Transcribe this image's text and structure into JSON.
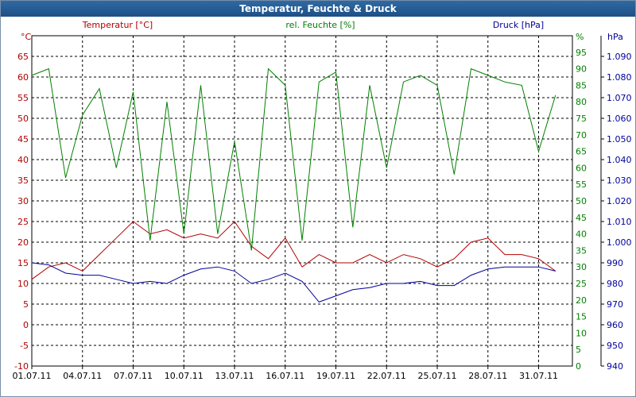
{
  "window": {
    "title": "Temperatur, Feuchte & Druck"
  },
  "colors": {
    "temperature": "#b00000",
    "humidity": "#008000",
    "pressure": "#00009a",
    "grid": "#000000"
  },
  "chart_data": {
    "type": "line",
    "title": "Temperatur, Feuchte & Druck",
    "grid": true,
    "x_ticks": [
      "01.07.11",
      "04.07.11",
      "07.07.11",
      "10.07.11",
      "13.07.11",
      "16.07.11",
      "19.07.11",
      "22.07.11",
      "25.07.11",
      "28.07.11",
      "31.07.11"
    ],
    "xlim": [
      "2011-07-01",
      "2011-08-02"
    ],
    "axes": {
      "temperature": {
        "label": "Temperatur [°C]",
        "unit": "°C",
        "ylim": [
          -10,
          70
        ],
        "ticks": [
          "-10",
          "-5",
          "0",
          "5",
          "10",
          "15",
          "20",
          "25",
          "30",
          "35",
          "40",
          "45",
          "50",
          "55",
          "60",
          "65"
        ]
      },
      "humidity": {
        "label": "rel. Feuchte [%]",
        "unit": "%",
        "ylim": [
          0,
          100
        ],
        "ticks": [
          "0",
          "5",
          "10",
          "15",
          "20",
          "25",
          "30",
          "35",
          "40",
          "45",
          "50",
          "55",
          "60",
          "65",
          "70",
          "75",
          "80",
          "85",
          "90",
          "95"
        ]
      },
      "pressure": {
        "label": "Druck [hPa]",
        "unit": "hPa",
        "ylim": [
          940,
          1100
        ],
        "ticks": [
          "940",
          "950",
          "960",
          "970",
          "980",
          "990",
          "1.000",
          "1.010",
          "1.020",
          "1.030",
          "1.040",
          "1.050",
          "1.060",
          "1.070",
          "1.080",
          "1.090"
        ]
      }
    },
    "series": [
      {
        "name": "Temperatur [°C]",
        "axis": "temperature",
        "x": [
          "2011-07-01",
          "2011-07-02",
          "2011-07-03",
          "2011-07-04",
          "2011-07-05",
          "2011-07-06",
          "2011-07-07",
          "2011-07-08",
          "2011-07-09",
          "2011-07-10",
          "2011-07-11",
          "2011-07-12",
          "2011-07-13",
          "2011-07-14",
          "2011-07-15",
          "2011-07-16",
          "2011-07-17",
          "2011-07-18",
          "2011-07-19",
          "2011-07-20",
          "2011-07-21",
          "2011-07-22",
          "2011-07-23",
          "2011-07-24",
          "2011-07-25",
          "2011-07-26",
          "2011-07-27",
          "2011-07-28",
          "2011-07-29",
          "2011-07-30",
          "2011-07-31",
          "2011-08-01"
        ],
        "y": [
          11,
          14,
          15,
          13,
          17,
          21,
          25,
          22,
          23,
          21,
          22,
          21,
          25,
          19,
          16,
          21,
          14,
          17,
          15,
          15,
          17,
          15,
          17,
          16,
          14,
          16,
          20,
          21,
          17,
          17,
          16,
          13
        ]
      },
      {
        "name": "rel. Feuchte [%]",
        "axis": "humidity",
        "x": [
          "2011-07-01",
          "2011-07-02",
          "2011-07-03",
          "2011-07-04",
          "2011-07-05",
          "2011-07-06",
          "2011-07-07",
          "2011-07-08",
          "2011-07-09",
          "2011-07-10",
          "2011-07-11",
          "2011-07-12",
          "2011-07-13",
          "2011-07-14",
          "2011-07-15",
          "2011-07-16",
          "2011-07-17",
          "2011-07-18",
          "2011-07-19",
          "2011-07-20",
          "2011-07-21",
          "2011-07-22",
          "2011-07-23",
          "2011-07-24",
          "2011-07-25",
          "2011-07-26",
          "2011-07-27",
          "2011-07-28",
          "2011-07-29",
          "2011-07-30",
          "2011-07-31",
          "2011-08-01"
        ],
        "y": [
          88,
          90,
          57,
          76,
          84,
          60,
          83,
          38,
          80,
          40,
          85,
          40,
          68,
          35,
          90,
          85,
          38,
          86,
          89,
          42,
          85,
          60,
          86,
          88,
          85,
          58,
          90,
          88,
          86,
          85,
          65,
          82
        ]
      },
      {
        "name": "Druck [hPa]",
        "axis": "pressure",
        "x": [
          "2011-07-01",
          "2011-07-02",
          "2011-07-03",
          "2011-07-04",
          "2011-07-05",
          "2011-07-06",
          "2011-07-07",
          "2011-07-08",
          "2011-07-09",
          "2011-07-10",
          "2011-07-11",
          "2011-07-12",
          "2011-07-13",
          "2011-07-14",
          "2011-07-15",
          "2011-07-16",
          "2011-07-17",
          "2011-07-18",
          "2011-07-19",
          "2011-07-20",
          "2011-07-21",
          "2011-07-22",
          "2011-07-23",
          "2011-07-24",
          "2011-07-25",
          "2011-07-26",
          "2011-07-27",
          "2011-07-28",
          "2011-07-29",
          "2011-07-30",
          "2011-07-31",
          "2011-08-01"
        ],
        "y": [
          990,
          989,
          985,
          984,
          984,
          982,
          980,
          981,
          980,
          984,
          987,
          988,
          986,
          980,
          982,
          985,
          981,
          971,
          974,
          977,
          978,
          980,
          980,
          981,
          979,
          979,
          984,
          987,
          988,
          988,
          988,
          986
        ]
      }
    ]
  }
}
